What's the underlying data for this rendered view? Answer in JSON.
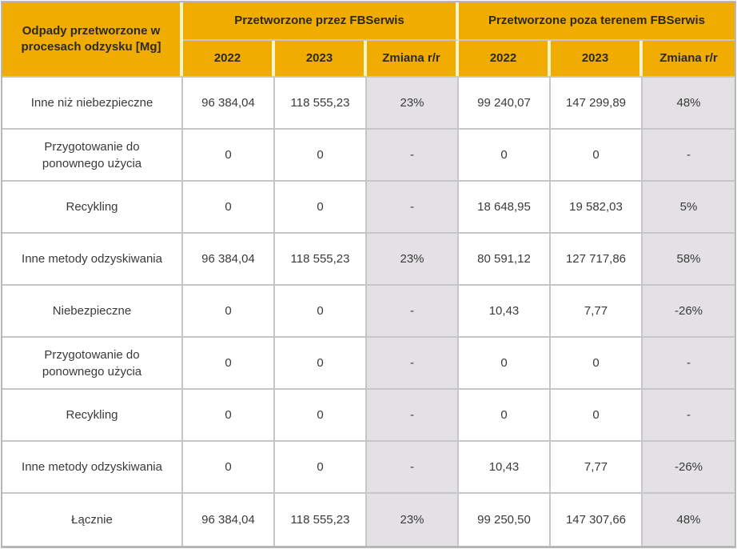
{
  "colors": {
    "header_bg": "#F0AC00",
    "header_separator": "#FAF5C8",
    "grid_line": "#C6C5C8",
    "outer_border": "#B6B5B8",
    "change_col_bg": "#E3E1E4",
    "body_bg": "#FFFFFF",
    "body_text": "#3A3A3A",
    "header_text": "#2D2A24"
  },
  "header": {
    "corner": "Odpady przetworzone w procesach odzysku [Mg]",
    "groups": [
      {
        "label": "Przetworzone przez FBSerwis",
        "columns": [
          "2022",
          "2023",
          "Zmiana r/r"
        ]
      },
      {
        "label": "Przetworzone poza terenem FBSerwis",
        "columns": [
          "2022",
          "2023",
          "Zmiana r/r"
        ]
      }
    ]
  },
  "rows": [
    {
      "label": "Inne niż niebezpieczne",
      "cells": [
        "96 384,04",
        "118 555,23",
        "23%",
        "99 240,07",
        "147 299,89",
        "48%"
      ]
    },
    {
      "label": "Przygotowanie do ponownego użycia",
      "cells": [
        "0",
        "0",
        "-",
        "0",
        "0",
        "-"
      ]
    },
    {
      "label": "Recykling",
      "cells": [
        "0",
        "0",
        "-",
        "18 648,95",
        "19 582,03",
        "5%"
      ]
    },
    {
      "label": "Inne metody odzyskiwania",
      "cells": [
        "96 384,04",
        "118 555,23",
        "23%",
        "80 591,12",
        "127 717,86",
        "58%"
      ]
    },
    {
      "label": "Niebezpieczne",
      "cells": [
        "0",
        "0",
        "-",
        "10,43",
        "7,77",
        "-26%"
      ]
    },
    {
      "label": "Przygotowanie do ponownego użycia",
      "cells": [
        "0",
        "0",
        "-",
        "0",
        "0",
        "-"
      ]
    },
    {
      "label": "Recykling",
      "cells": [
        "0",
        "0",
        "-",
        "0",
        "0",
        "-"
      ]
    },
    {
      "label": "Inne metody odzyskiwania",
      "cells": [
        "0",
        "0",
        "-",
        "10,43",
        "7,77",
        "-26%"
      ]
    },
    {
      "label": "Łącznie",
      "cells": [
        "96 384,04",
        "118 555,23",
        "23%",
        "99 250,50",
        "147 307,66",
        "48%"
      ]
    }
  ]
}
